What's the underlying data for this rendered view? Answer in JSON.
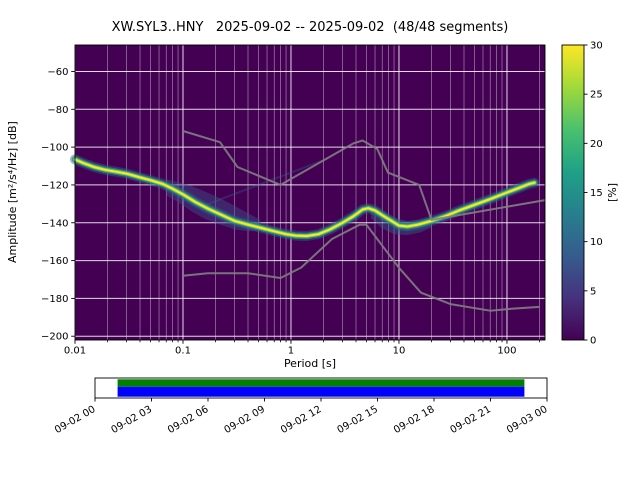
{
  "figure": {
    "background": "#ffffff"
  },
  "chart_data": {
    "type": "heatmap",
    "title": "XW.SYL3..HNY   2025-09-02 -- 2025-09-02  (48/48 segments)",
    "xlabel": "Period [s]",
    "ylabel": "Amplitude [m²/s⁴/Hz] [dB]",
    "xscale": "log",
    "xlim": [
      0.01,
      225
    ],
    "ylim": [
      -202,
      -46
    ],
    "plot_bg": "#440154",
    "grid_color": "#ffffff",
    "x_ticks": [
      {
        "value": 0.01,
        "label": "0.01"
      },
      {
        "value": 0.1,
        "label": "0.1"
      },
      {
        "value": 1,
        "label": "1"
      },
      {
        "value": 10,
        "label": "10"
      },
      {
        "value": 100,
        "label": "100"
      }
    ],
    "y_ticks": [
      {
        "value": -60,
        "label": "−60"
      },
      {
        "value": -80,
        "label": "−80"
      },
      {
        "value": -100,
        "label": "−100"
      },
      {
        "value": -120,
        "label": "−120"
      },
      {
        "value": -140,
        "label": "−140"
      },
      {
        "value": -160,
        "label": "−160"
      },
      {
        "value": -180,
        "label": "−180"
      },
      {
        "value": -200,
        "label": "−200"
      }
    ],
    "colormap_stops": [
      "#440154",
      "#46327e",
      "#365c8d",
      "#277f8e",
      "#1fa187",
      "#4ac16d",
      "#a0da39",
      "#fde725"
    ],
    "colorbar": {
      "label": "[%]",
      "min": 0,
      "max": 30,
      "ticks": [
        {
          "value": 0,
          "label": "0"
        },
        {
          "value": 5,
          "label": "5"
        },
        {
          "value": 10,
          "label": "10"
        },
        {
          "value": 15,
          "label": "15"
        },
        {
          "value": 20,
          "label": "20"
        },
        {
          "value": 25,
          "label": "25"
        },
        {
          "value": 30,
          "label": "30"
        }
      ]
    },
    "psd_mode": {
      "description": "Bright ridge of the PPSD histogram (period s, amplitude dB)",
      "points": [
        [
          0.01,
          -106.5
        ],
        [
          0.012,
          -108.5
        ],
        [
          0.015,
          -110.5
        ],
        [
          0.019,
          -112.0
        ],
        [
          0.024,
          -113.0
        ],
        [
          0.03,
          -114.0
        ],
        [
          0.04,
          -116.0
        ],
        [
          0.05,
          -117.5
        ],
        [
          0.065,
          -119.5
        ],
        [
          0.08,
          -122.0
        ],
        [
          0.1,
          -125.0
        ],
        [
          0.13,
          -129.0
        ],
        [
          0.17,
          -132.5
        ],
        [
          0.22,
          -135.5
        ],
        [
          0.3,
          -139.0
        ],
        [
          0.4,
          -141.0
        ],
        [
          0.55,
          -143.0
        ],
        [
          0.7,
          -144.5
        ],
        [
          0.9,
          -146.0
        ],
        [
          1.1,
          -146.8
        ],
        [
          1.4,
          -147.0
        ],
        [
          1.8,
          -146.0
        ],
        [
          2.3,
          -143.5
        ],
        [
          3.0,
          -140.0
        ],
        [
          3.8,
          -136.5
        ],
        [
          4.6,
          -133.0
        ],
        [
          5.2,
          -132.3
        ],
        [
          6.0,
          -133.5
        ],
        [
          7.0,
          -136.0
        ],
        [
          8.5,
          -139.0
        ],
        [
          10.0,
          -141.5
        ],
        [
          12.0,
          -142.0
        ],
        [
          15.0,
          -141.0
        ],
        [
          20.0,
          -139.0
        ],
        [
          27.0,
          -136.5
        ],
        [
          36.0,
          -133.5
        ],
        [
          50.0,
          -130.5
        ],
        [
          70.0,
          -127.5
        ],
        [
          100.0,
          -124.0
        ],
        [
          130.0,
          -121.5
        ],
        [
          160.0,
          -119.5
        ],
        [
          180.0,
          -118.8
        ]
      ]
    },
    "band_layers": [
      {
        "width": 10,
        "color": "#355f8d",
        "opacity": 0.45
      },
      {
        "width": 6.5,
        "color": "#21918c",
        "opacity": 0.8
      },
      {
        "width": 3.8,
        "color": "#6ece58",
        "opacity": 0.95
      },
      {
        "width": 2.0,
        "color": "#fde725",
        "opacity": 1.0
      }
    ],
    "spread_regions": [
      {
        "color": "#3b528b",
        "opacity": 0.45,
        "polygon": [
          [
            0.07,
            -117.0
          ],
          [
            0.09,
            -118.5
          ],
          [
            0.12,
            -120.5
          ],
          [
            0.16,
            -123.5
          ],
          [
            0.22,
            -127.0
          ],
          [
            0.3,
            -131.0
          ],
          [
            0.4,
            -135.0
          ],
          [
            0.52,
            -138.5
          ],
          [
            0.52,
            -144.0
          ],
          [
            0.4,
            -144.5
          ],
          [
            0.3,
            -143.5
          ],
          [
            0.22,
            -141.0
          ],
          [
            0.16,
            -138.0
          ],
          [
            0.12,
            -134.0
          ],
          [
            0.09,
            -129.0
          ],
          [
            0.07,
            -125.5
          ]
        ]
      },
      {
        "color": "#31688e",
        "opacity": 0.4,
        "polygon": [
          [
            5.5,
            -131.5
          ],
          [
            7.0,
            -134.5
          ],
          [
            9.0,
            -137.5
          ],
          [
            12.0,
            -139.0
          ],
          [
            16.0,
            -138.5
          ],
          [
            20.0,
            -137.0
          ],
          [
            20.0,
            -142.5
          ],
          [
            16.0,
            -145.0
          ],
          [
            12.0,
            -146.5
          ],
          [
            9.0,
            -146.0
          ],
          [
            7.0,
            -143.0
          ],
          [
            5.5,
            -137.5
          ]
        ]
      }
    ],
    "artifact_line": {
      "points": [
        [
          0.14,
          -132
        ],
        [
          2.2,
          -106
        ]
      ],
      "color": "#31688e",
      "opacity": 0.33,
      "width": 2
    },
    "noise_models": {
      "color": "#7f7f7f",
      "width": 2,
      "nhnm": [
        [
          0.1,
          -91.5
        ],
        [
          0.22,
          -97.4
        ],
        [
          0.32,
          -110.5
        ],
        [
          0.8,
          -120.0
        ],
        [
          3.8,
          -98.0
        ],
        [
          4.6,
          -96.5
        ],
        [
          6.3,
          -101.0
        ],
        [
          7.9,
          -113.5
        ],
        [
          15.4,
          -120.0
        ],
        [
          20.0,
          -138.5
        ],
        [
          225.0,
          -128.0
        ]
      ],
      "nlnm": [
        [
          0.1,
          -168.0
        ],
        [
          0.17,
          -166.7
        ],
        [
          0.4,
          -166.7
        ],
        [
          0.8,
          -169.2
        ],
        [
          1.24,
          -163.7
        ],
        [
          2.4,
          -148.6
        ],
        [
          4.3,
          -141.1
        ],
        [
          5.0,
          -141.1
        ],
        [
          10.0,
          -163.8
        ],
        [
          16.0,
          -177.0
        ],
        [
          30.0,
          -183.0
        ],
        [
          70.0,
          -186.5
        ],
        [
          110.0,
          -185.5
        ],
        [
          200.0,
          -184.5
        ]
      ]
    },
    "coverage": {
      "tick_labels": [
        "09-02 00",
        "09-02 03",
        "09-02 06",
        "09-02 09",
        "09-02 12",
        "09-02 15",
        "09-02 18",
        "09-02 21",
        "09-03 00"
      ],
      "segments_color": "#008000",
      "data_color": "#0000ff",
      "start_frac": 0.05,
      "end_frac": 0.95
    }
  }
}
